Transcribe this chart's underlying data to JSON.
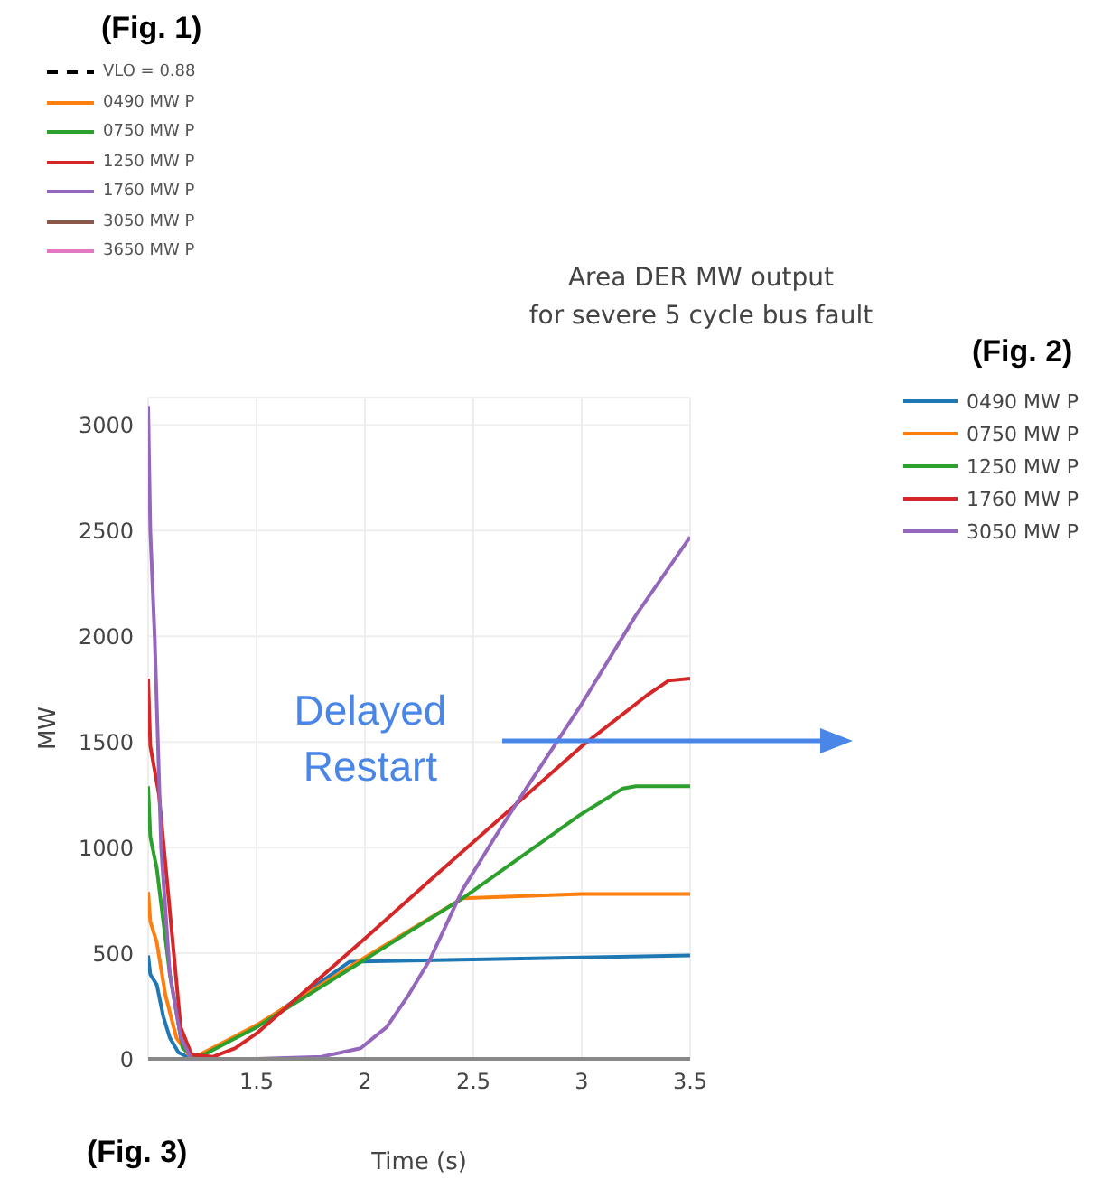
{
  "chart_data": {
    "type": "line",
    "title": "Area DER MW output\nfor severe 5 cycle bus fault",
    "xlabel": "Time (s)",
    "ylabel": "MW",
    "xlim": [
      1,
      3.5
    ],
    "xticks": [
      1.5,
      2,
      2.5,
      3,
      3.5
    ],
    "ylim": [
      0,
      3130
    ],
    "yticks": [
      0,
      500,
      1000,
      1500,
      2000,
      2500,
      3000
    ],
    "grid": true,
    "legend": "top right",
    "marker": "none",
    "line_style": "solid",
    "series": [
      {
        "name": "0490 MW P",
        "color": "#1f77b4",
        "x": [
          1,
          1.01,
          1.04,
          1.07,
          1.1,
          1.14,
          1.2,
          1.5,
          1.93,
          2.5,
          3,
          3.5
        ],
        "values": [
          490,
          400,
          350,
          200,
          100,
          30,
          0,
          150,
          460,
          470,
          480,
          490
        ]
      },
      {
        "name": "0750 MW P",
        "color": "#ff7f0e",
        "x": [
          1,
          1.01,
          1.04,
          1.08,
          1.13,
          1.2,
          1.5,
          2,
          2.45,
          3,
          3.5
        ],
        "values": [
          790,
          650,
          550,
          300,
          100,
          0,
          160,
          480,
          760,
          780,
          780
        ]
      },
      {
        "name": "1250 MW P",
        "color": "#2ca02c",
        "x": [
          1,
          1.01,
          1.04,
          1.1,
          1.16,
          1.22,
          1.5,
          2,
          2.45,
          3,
          3.19,
          3.25,
          3.5
        ],
        "values": [
          1290,
          1050,
          900,
          400,
          50,
          0,
          150,
          470,
          760,
          1160,
          1280,
          1290,
          1290
        ]
      },
      {
        "name": "1760 MW P",
        "color": "#d62728",
        "x": [
          1,
          1.01,
          1.05,
          1.1,
          1.15,
          1.2,
          1.3,
          1.4,
          1.5,
          2,
          2.35,
          3,
          3.3,
          3.4,
          3.5
        ],
        "values": [
          1800,
          1480,
          1250,
          700,
          150,
          20,
          10,
          50,
          120,
          570,
          890,
          1480,
          1720,
          1790,
          1800
        ]
      },
      {
        "name": "3050 MW P",
        "color": "#9467bd",
        "x": [
          1,
          1.01,
          1.03,
          1.06,
          1.1,
          1.15,
          1.2,
          1.5,
          1.8,
          1.98,
          2.1,
          2.2,
          2.3,
          2.45,
          2.6,
          2.75,
          2.84,
          3,
          3.25,
          3.5
        ],
        "values": [
          3090,
          2500,
          2000,
          1000,
          400,
          100,
          0,
          0,
          10,
          50,
          150,
          300,
          470,
          800,
          1050,
          1290,
          1430,
          1680,
          2100,
          2470
        ]
      }
    ],
    "annotations": [
      "(Fig. 1)",
      "VLO = 0.88",
      "0490 MW P",
      "0750 MW P",
      "1250 MW P",
      "1760 MW P",
      "3050 MW P",
      "3650 MW P",
      "(Fig. 2)",
      "(Fig. 3)",
      "Delayed Restart"
    ]
  }
}
